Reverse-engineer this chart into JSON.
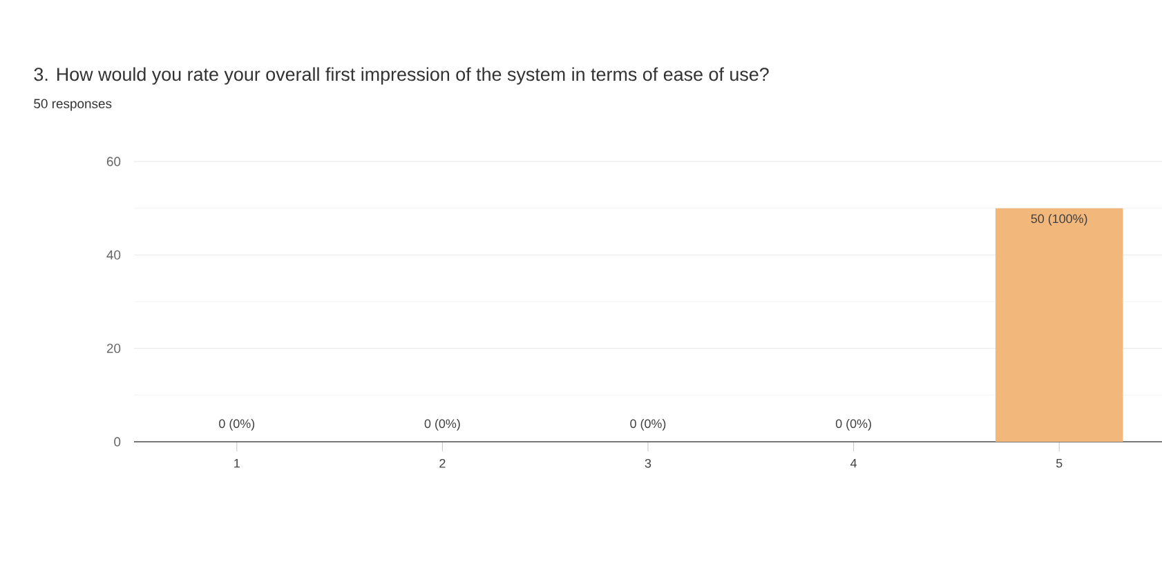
{
  "chart_data": {
    "type": "bar",
    "title": "3. How would you rate your overall first impression of the system in terms of ease of use?",
    "subtitle": "50 responses",
    "categories": [
      "1",
      "2",
      "3",
      "4",
      "5"
    ],
    "values": [
      0,
      0,
      0,
      0,
      50
    ],
    "value_labels": [
      "0 (0%)",
      "0 (0%)",
      "0 (0%)",
      "0 (0%)",
      "50 (100%)"
    ],
    "color": "#f2b77b",
    "ylim": [
      0,
      60
    ],
    "yticks": [
      0,
      20,
      40,
      60
    ],
    "grid": "y"
  }
}
